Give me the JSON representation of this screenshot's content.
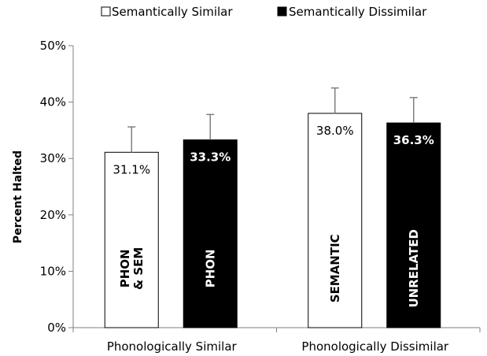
{
  "chart_data": {
    "type": "bar",
    "ylabel": "Percent Halted",
    "ylim": [
      0,
      50
    ],
    "yticks": [
      "0%",
      "10%",
      "20%",
      "30%",
      "40%",
      "50%"
    ],
    "yunit": "%",
    "legend_position": "top",
    "grid": false,
    "categories": [
      "Phonologically Similar",
      "Phonologically Dissimilar"
    ],
    "series": [
      {
        "name": "Semantically Similar",
        "fill": "#ffffff",
        "values": [
          31.1,
          38.0
        ],
        "errors": [
          4.5,
          4.5
        ],
        "value_labels": [
          "31.1%",
          "38.0%"
        ],
        "bar_labels": [
          [
            "PHON",
            "& SEM"
          ],
          [
            "SEMANTIC"
          ]
        ]
      },
      {
        "name": "Semantically Dissimilar",
        "fill": "#000000",
        "values": [
          33.3,
          36.3
        ],
        "errors": [
          4.5,
          4.5
        ],
        "value_labels": [
          "33.3%",
          "36.3%"
        ],
        "bar_labels": [
          [
            "PHON"
          ],
          [
            "UNRELATED"
          ]
        ]
      }
    ]
  }
}
